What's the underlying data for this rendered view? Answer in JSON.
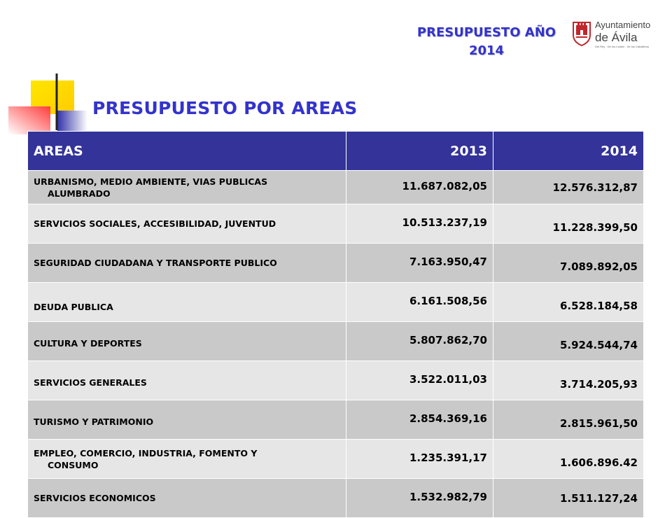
{
  "header": {
    "title_line1": "PRESUPUESTO AÑO",
    "title_line2": "2014"
  },
  "logo": {
    "line1": "Ayuntamiento",
    "line2": "de Ávila",
    "line3": "Del Rey · De los Leales · De los Caballeros"
  },
  "slide_title": "PRESUPUESTO POR AREAS",
  "table": {
    "headers": [
      "AREAS",
      "2013",
      "2014"
    ],
    "rows": [
      {
        "area_l1": "URBANISMO, MEDIO AMBIENTE, VIAS  PUBLICAS",
        "area_l2": "ALUMBRADO",
        "v2013": "11.687.082,05",
        "v2014": "12.576.312,87"
      },
      {
        "area_l1": "SERVICIOS SOCIALES, ACCESIBILIDAD, JUVENTUD",
        "area_l2": "",
        "v2013": "10.513.237,19",
        "v2014": "11.228.399,50"
      },
      {
        "area_l1": "SEGURIDAD CIUDADANA Y TRANSPORTE PUBLICO",
        "area_l2": "",
        "v2013": "7.163.950,47",
        "v2014": "7.089.892,05"
      },
      {
        "area_l1": "DEUDA PUBLICA",
        "area_l2": "",
        "v2013": "6.161.508,56",
        "v2014": "6.528.184,58"
      },
      {
        "area_l1": "CULTURA Y DEPORTES",
        "area_l2": "",
        "v2013": "5.807.862,70",
        "v2014": "5.924.544,74"
      },
      {
        "area_l1": "SERVICIOS GENERALES",
        "area_l2": "",
        "v2013": "3.522.011,03",
        "v2014": "3.714.205,93"
      },
      {
        "area_l1": "TURISMO Y PATRIMONIO",
        "area_l2": "",
        "v2013": "2.854.369,16",
        "v2014": "2.815.961,50"
      },
      {
        "area_l1": "EMPLEO, COMERCIO, INDUSTRIA, FOMENTO Y",
        "area_l2": "CONSUMO",
        "v2013": "1.235.391,17",
        "v2014": "1.606.896.42"
      },
      {
        "area_l1": "SERVICIOS ECONOMICOS",
        "area_l2": "",
        "v2013": "1.532.982,79",
        "v2014": "1.511.127,24"
      }
    ]
  },
  "colors": {
    "title_blue": "#3333cc",
    "header_bg": "#333399",
    "row_dark": "#c9c9c9",
    "row_light": "#e6e6e6",
    "logo_red": "#c0272d"
  }
}
